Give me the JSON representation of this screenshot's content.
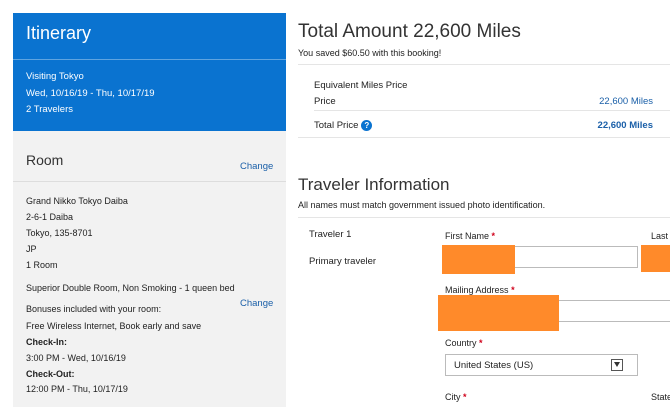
{
  "itinerary": {
    "title": "Itinerary",
    "visiting": "Visiting Tokyo",
    "dates": "Wed, 10/16/19 - Thu, 10/17/19",
    "travelers": "2 Travelers"
  },
  "room": {
    "title": "Room",
    "change_label": "Change",
    "hotel_name": "Grand Nikko Tokyo Daiba",
    "address1": "2-6-1 Daiba",
    "address2": "Tokyo, 135-8701",
    "country": "JP",
    "room_count": "1 Room",
    "room_type": "Superior Double Room, Non Smoking - 1 queen bed",
    "change2_label": "Change",
    "bonuses_label": "Bonuses included with your room:",
    "bonuses": "Free Wireless Internet, Book early and save",
    "checkin_label": "Check-In:",
    "checkin_value": "3:00 PM - Wed, 10/16/19",
    "checkout_label": "Check-Out:",
    "checkout_value": "12:00 PM - Thu, 10/17/19"
  },
  "summary": {
    "title": "Total Amount 22,600 Miles",
    "saved": "You saved $60.50 with this booking!",
    "equiv_label": "Equivalent Miles Price",
    "price_label": "Price",
    "price_value": "22,600 Miles",
    "total_label": "Total Price",
    "total_value": "22,600 Miles"
  },
  "traveler": {
    "title": "Traveler Information",
    "note": "All names must match government issued photo identification.",
    "traveler_number": "Traveler 1",
    "traveler_role": "Primary traveler",
    "first_name_label": "First Name",
    "last_name_label": "Last",
    "mailing_address_label": "Mailing Address",
    "country_label": "Country",
    "country_value": "United States (US)",
    "city_label": "City",
    "state_label": "State"
  },
  "colors": {
    "accent": "#0a73d0",
    "link": "#1a5fa8",
    "required": "#d0021b",
    "redaction": "#ff8a2a"
  },
  "icons": [
    "info-icon",
    "chevron-down-icon"
  ]
}
